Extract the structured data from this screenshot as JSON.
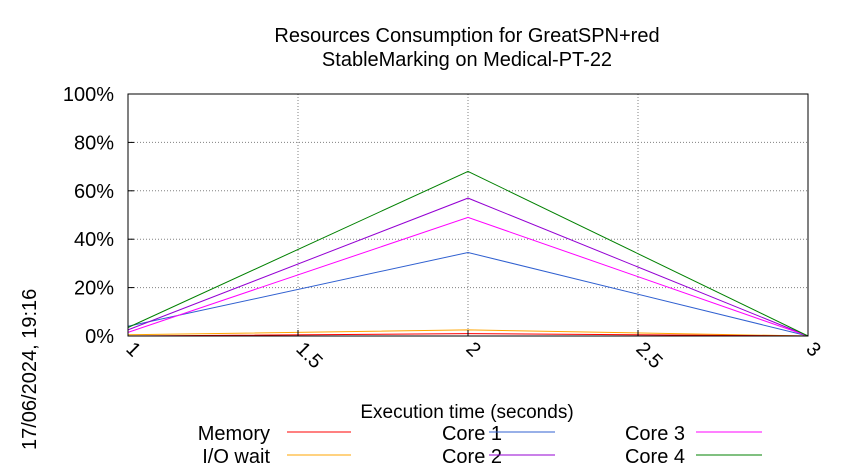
{
  "chart_data": {
    "type": "line",
    "title": "Resources Consumption for GreatSPN+red",
    "subtitle": "StableMarking on Medical-PT-22",
    "xlabel": "Execution time (seconds)",
    "ylabel": "",
    "x": [
      1,
      2,
      3
    ],
    "xlim": [
      1,
      3
    ],
    "ylim": [
      0,
      100
    ],
    "xticks": [
      "1",
      "1.5",
      "2",
      "2.5",
      "3"
    ],
    "yticks": [
      "0%",
      "20%",
      "40%",
      "60%",
      "80%",
      "100%"
    ],
    "grid": true,
    "legend_position": "bottom",
    "series": [
      {
        "name": "Memory",
        "color": "#ff0000",
        "values": [
          0,
          1,
          0
        ]
      },
      {
        "name": "I/O wait",
        "color": "#ffa500",
        "values": [
          0.5,
          2.5,
          0
        ]
      },
      {
        "name": "Core 1",
        "color": "#3060d0",
        "values": [
          4,
          34.5,
          0
        ]
      },
      {
        "name": "Core 2",
        "color": "#9400d3",
        "values": [
          2.5,
          57,
          0
        ]
      },
      {
        "name": "Core 3",
        "color": "#ff00ff",
        "values": [
          1.5,
          49,
          0
        ]
      },
      {
        "name": "Core 4",
        "color": "#008000",
        "values": [
          3.5,
          68,
          0
        ]
      }
    ]
  },
  "timestamp": "17/06/2024, 19:16"
}
